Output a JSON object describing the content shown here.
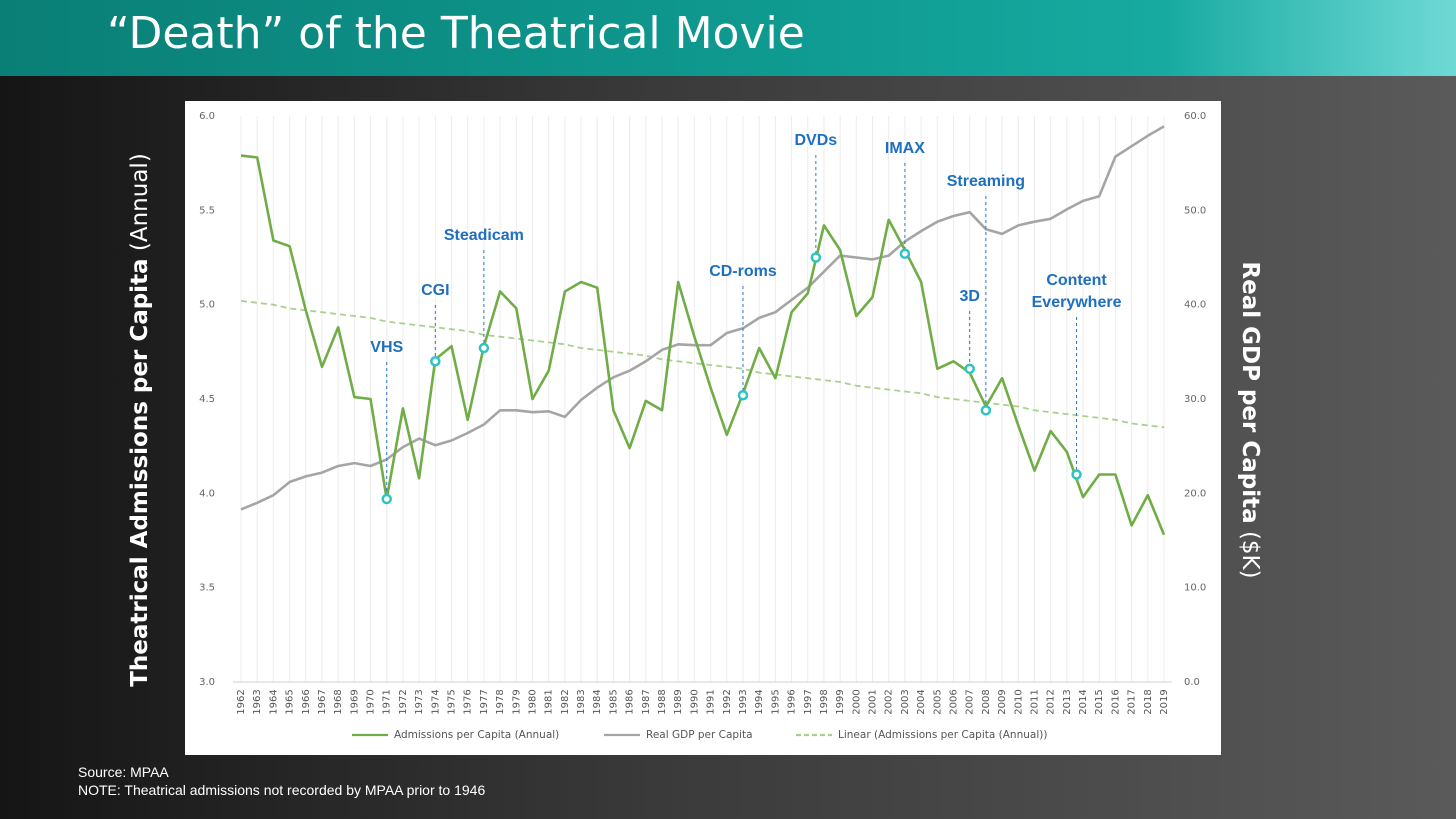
{
  "header": {
    "title": "“Death” of the Theatrical Movie"
  },
  "footer": {
    "source": "Source: MPAA",
    "note": "NOTE: Theatrical admissions not recorded by MPAA prior to 1946"
  },
  "chart_data": {
    "type": "line",
    "ylabel_main": "Theatrical Admissions per Capita",
    "ylabel_unit": "(Annual)",
    "y2label_main": "Real GDP per Capita",
    "y2label_unit": "($K)",
    "categories": [
      "1962",
      "1963",
      "1964",
      "1965",
      "1966",
      "1967",
      "1968",
      "1969",
      "1970",
      "1971",
      "1972",
      "1973",
      "1974",
      "1975",
      "1976",
      "1977",
      "1978",
      "1979",
      "1980",
      "1981",
      "1982",
      "1983",
      "1984",
      "1985",
      "1986",
      "1987",
      "1988",
      "1989",
      "1990",
      "1991",
      "1992",
      "1993",
      "1994",
      "1995",
      "1996",
      "1997",
      "1998",
      "1999",
      "2000",
      "2001",
      "2002",
      "2003",
      "2004",
      "2005",
      "2006",
      "2007",
      "2008",
      "2009",
      "2010",
      "2011",
      "2012",
      "2013",
      "2014",
      "2015",
      "2016",
      "2017",
      "2018",
      "2019"
    ],
    "series": [
      {
        "name": "Admissions per Capita (Annual)",
        "color": "#70ad47",
        "dash": false,
        "values": [
          5.79,
          5.78,
          5.34,
          5.31,
          4.97,
          4.67,
          4.88,
          4.51,
          4.5,
          3.97,
          4.45,
          4.08,
          4.71,
          4.78,
          4.39,
          4.78,
          5.07,
          4.98,
          4.5,
          4.65,
          5.07,
          5.12,
          5.09,
          4.44,
          4.24,
          4.49,
          4.44,
          5.12,
          4.83,
          4.56,
          4.31,
          4.53,
          4.77,
          4.61,
          4.96,
          5.06,
          5.42,
          5.29,
          4.94,
          5.04,
          5.45,
          5.29,
          5.12,
          4.66,
          4.7,
          4.64,
          4.46,
          4.61,
          4.36,
          4.12,
          4.33,
          4.22,
          3.98,
          4.1,
          4.1,
          3.83,
          3.99,
          3.78
        ]
      },
      {
        "name": "Real GDP per Capita",
        "color": "#a5a5a5",
        "dash": false,
        "axis": "y2",
        "values": [
          18.3,
          19.0,
          19.8,
          21.2,
          21.8,
          22.2,
          22.9,
          23.2,
          22.9,
          23.6,
          24.9,
          25.8,
          25.1,
          25.6,
          26.4,
          27.3,
          28.8,
          28.8,
          28.6,
          28.7,
          28.1,
          29.9,
          31.2,
          32.3,
          33.0,
          34.0,
          35.2,
          35.8,
          35.7,
          35.7,
          37.0,
          37.5,
          38.6,
          39.2,
          40.5,
          41.8,
          43.5,
          45.2,
          45.0,
          44.8,
          45.2,
          46.7,
          47.8,
          48.8,
          49.4,
          49.8,
          48.0,
          47.5,
          48.4,
          48.8,
          49.1,
          50.1,
          51.0,
          51.5,
          55.7,
          56.8,
          57.9,
          58.9
        ]
      },
      {
        "name": "Linear (Admissions per Capita (Annual))",
        "color": "#a9d18e",
        "dash": true,
        "values": [
          5.02,
          5.01,
          5.0,
          4.98,
          4.97,
          4.96,
          4.95,
          4.94,
          4.93,
          4.91,
          4.9,
          4.89,
          4.88,
          4.87,
          4.86,
          4.84,
          4.83,
          4.82,
          4.81,
          4.8,
          4.79,
          4.77,
          4.76,
          4.75,
          4.74,
          4.73,
          4.71,
          4.7,
          4.69,
          4.68,
          4.67,
          4.66,
          4.64,
          4.63,
          4.62,
          4.61,
          4.6,
          4.59,
          4.57,
          4.56,
          4.55,
          4.54,
          4.53,
          4.51,
          4.5,
          4.49,
          4.48,
          4.47,
          4.46,
          4.44,
          4.43,
          4.42,
          4.41,
          4.4,
          4.39,
          4.37,
          4.36,
          4.35
        ]
      }
    ],
    "ylim": [
      3,
      6
    ],
    "yticks": [
      {
        "value": 3,
        "label": "3.0"
      },
      {
        "value": 3.5,
        "label": "3.5"
      },
      {
        "value": 4,
        "label": "4.0"
      },
      {
        "value": 4.5,
        "label": "4.5"
      },
      {
        "value": 5,
        "label": "5.0"
      },
      {
        "value": 5.5,
        "label": "5.5"
      },
      {
        "value": 6,
        "label": "6.0"
      }
    ],
    "y2lim": [
      0,
      60
    ],
    "y2ticks": [
      {
        "value": 0,
        "label": "0.0"
      },
      {
        "value": 10,
        "label": "10.0"
      },
      {
        "value": 20,
        "label": "20.0"
      },
      {
        "value": 30,
        "label": "30.0"
      },
      {
        "value": 40,
        "label": "40.0"
      },
      {
        "value": 50,
        "label": "50.0"
      },
      {
        "value": 60,
        "label": "60.0"
      }
    ],
    "annotations": [
      {
        "text": [
          "VHS"
        ],
        "x": 1971,
        "y": 3.97
      },
      {
        "text": [
          "CGI"
        ],
        "x": 1974,
        "y": 4.7
      },
      {
        "text": [
          "Steadicam"
        ],
        "x": 1977,
        "y": 4.77
      },
      {
        "text": [
          "CD-roms"
        ],
        "x": 1993,
        "y": 4.52
      },
      {
        "text": [
          "DVDs"
        ],
        "x": 1997.5,
        "y": 5.25
      },
      {
        "text": [
          "IMAX"
        ],
        "x": 2003,
        "y": 5.27
      },
      {
        "text": [
          "Streaming"
        ],
        "x": 2008,
        "y": 4.44
      },
      {
        "text": [
          "3D"
        ],
        "x": 2007,
        "y": 4.66
      },
      {
        "text": [
          "Content",
          "Everywhere"
        ],
        "x": 2013.6,
        "y": 4.1
      }
    ],
    "grid": "vertical",
    "legend": "bottom"
  }
}
